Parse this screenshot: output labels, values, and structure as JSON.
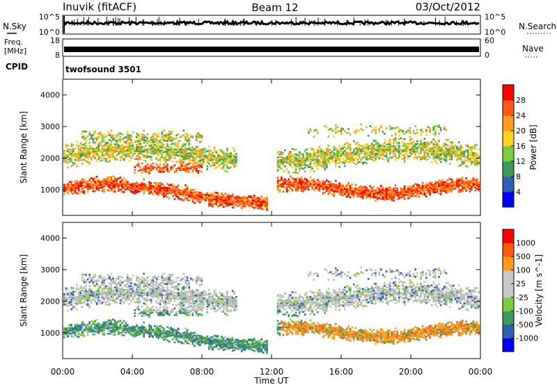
{
  "header": {
    "station": "Inuvik (fitACF)",
    "beam": "Beam 12",
    "date": "03/Oct/2012"
  },
  "panels": {
    "nsky": {
      "left_label": "N.Sky",
      "right_label": "N.Search",
      "left_ticks": [
        "10^5",
        "10^0"
      ],
      "right_ticks": [
        "10^5",
        "10^0"
      ]
    },
    "freq": {
      "left_label_1": "Freq.",
      "left_label_2": "[MHz]",
      "left_ticks": [
        "18",
        "8"
      ],
      "right_label": "Nave",
      "right_ticks": [
        "60",
        "0"
      ]
    },
    "cpid": {
      "label": "CPID",
      "program": "twofsound 3501"
    }
  },
  "colors": {
    "power_scale": [
      "#0000ff",
      "#2e5fb3",
      "#3a9a5c",
      "#7dcc3f",
      "#ffd21f",
      "#ff9a1a",
      "#ff5a14",
      "#ff0000"
    ],
    "velocity_scale": [
      "#0000ff",
      "#2e5fb3",
      "#3a9a5c",
      "#7dcc3f",
      "#c8c8c8",
      "#c8c8c8",
      "#ff9a1a",
      "#ff5a14",
      "#ff0000"
    ],
    "ground_scatter": "#bdbdbd"
  },
  "chart_data": [
    {
      "type": "heatmap",
      "name": "power",
      "ylabel": "Slant Range [km]",
      "ylim": [
        180,
        4500
      ],
      "yticks": [
        "1000",
        "2000",
        "3000",
        "4000"
      ],
      "xlim_hours": [
        0,
        24
      ],
      "colorbar_label": "Power [dB]",
      "colorbar_ticks": [
        "28",
        "24",
        "20",
        "16",
        "12",
        "8",
        "4"
      ],
      "colorbar_range": [
        0,
        32
      ]
    },
    {
      "type": "heatmap",
      "name": "velocity",
      "ylabel": "Slant Range [km]",
      "ylim": [
        180,
        4500
      ],
      "yticks": [
        "1000",
        "2000",
        "3000",
        "4000"
      ],
      "xlim_hours": [
        0,
        24
      ],
      "colorbar_label": "Velocity [m s^-1]",
      "colorbar_ticks": [
        "1000",
        "500",
        "100",
        "25",
        "-25",
        "-100",
        "-500",
        "-1000"
      ]
    }
  ],
  "xaxis": {
    "label": "Time UT",
    "ticks": [
      "00:00",
      "04:00",
      "08:00",
      "12:00",
      "16:00",
      "20:00",
      "00:00"
    ]
  }
}
